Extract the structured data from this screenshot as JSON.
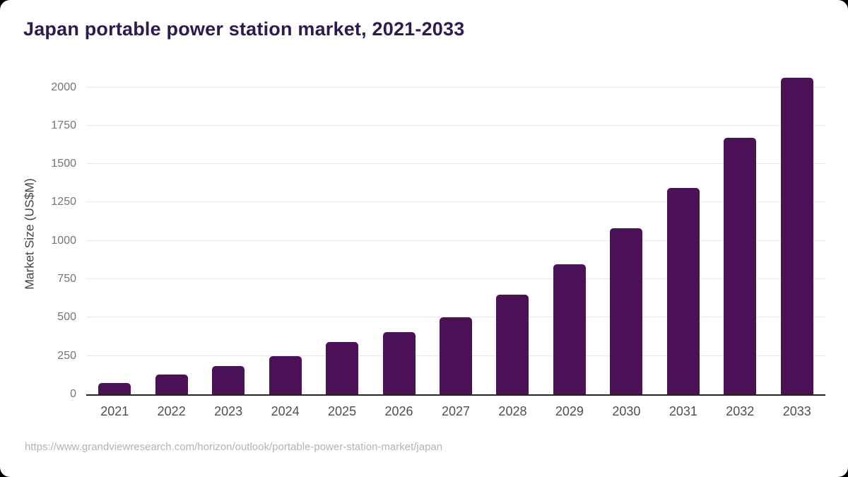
{
  "header": {
    "title": "Japan portable power station market, 2021-2033"
  },
  "footer": {
    "source_url": "https://www.grandviewresearch.com/horizon/outlook/portable-power-station-market/japan"
  },
  "colors": {
    "bar": "#4a1157",
    "title_text": "#2e1a4d",
    "axis_text": "#4f4f4f",
    "ytick_text": "#757575",
    "gridline": "#e8e8e8",
    "axis_line": "#232323",
    "source_text": "#b4b4b4",
    "surface": "#ffffff",
    "backdrop": "#000000"
  },
  "chart_data": {
    "type": "bar",
    "title": "Japan portable power station market, 2021-2033",
    "xlabel": "",
    "ylabel": "Market Size (US$M)",
    "categories": [
      "2021",
      "2022",
      "2023",
      "2024",
      "2025",
      "2026",
      "2027",
      "2028",
      "2029",
      "2030",
      "2031",
      "2032",
      "2033"
    ],
    "values": [
      74,
      130,
      185,
      250,
      340,
      405,
      503,
      647,
      846,
      1081,
      1346,
      1670,
      2062
    ],
    "yticks": [
      0,
      250,
      500,
      750,
      1000,
      1250,
      1500,
      1750,
      2000
    ],
    "ylim": [
      0,
      2090
    ],
    "grid": true,
    "legend": false,
    "bar_color": "#4a1157"
  }
}
